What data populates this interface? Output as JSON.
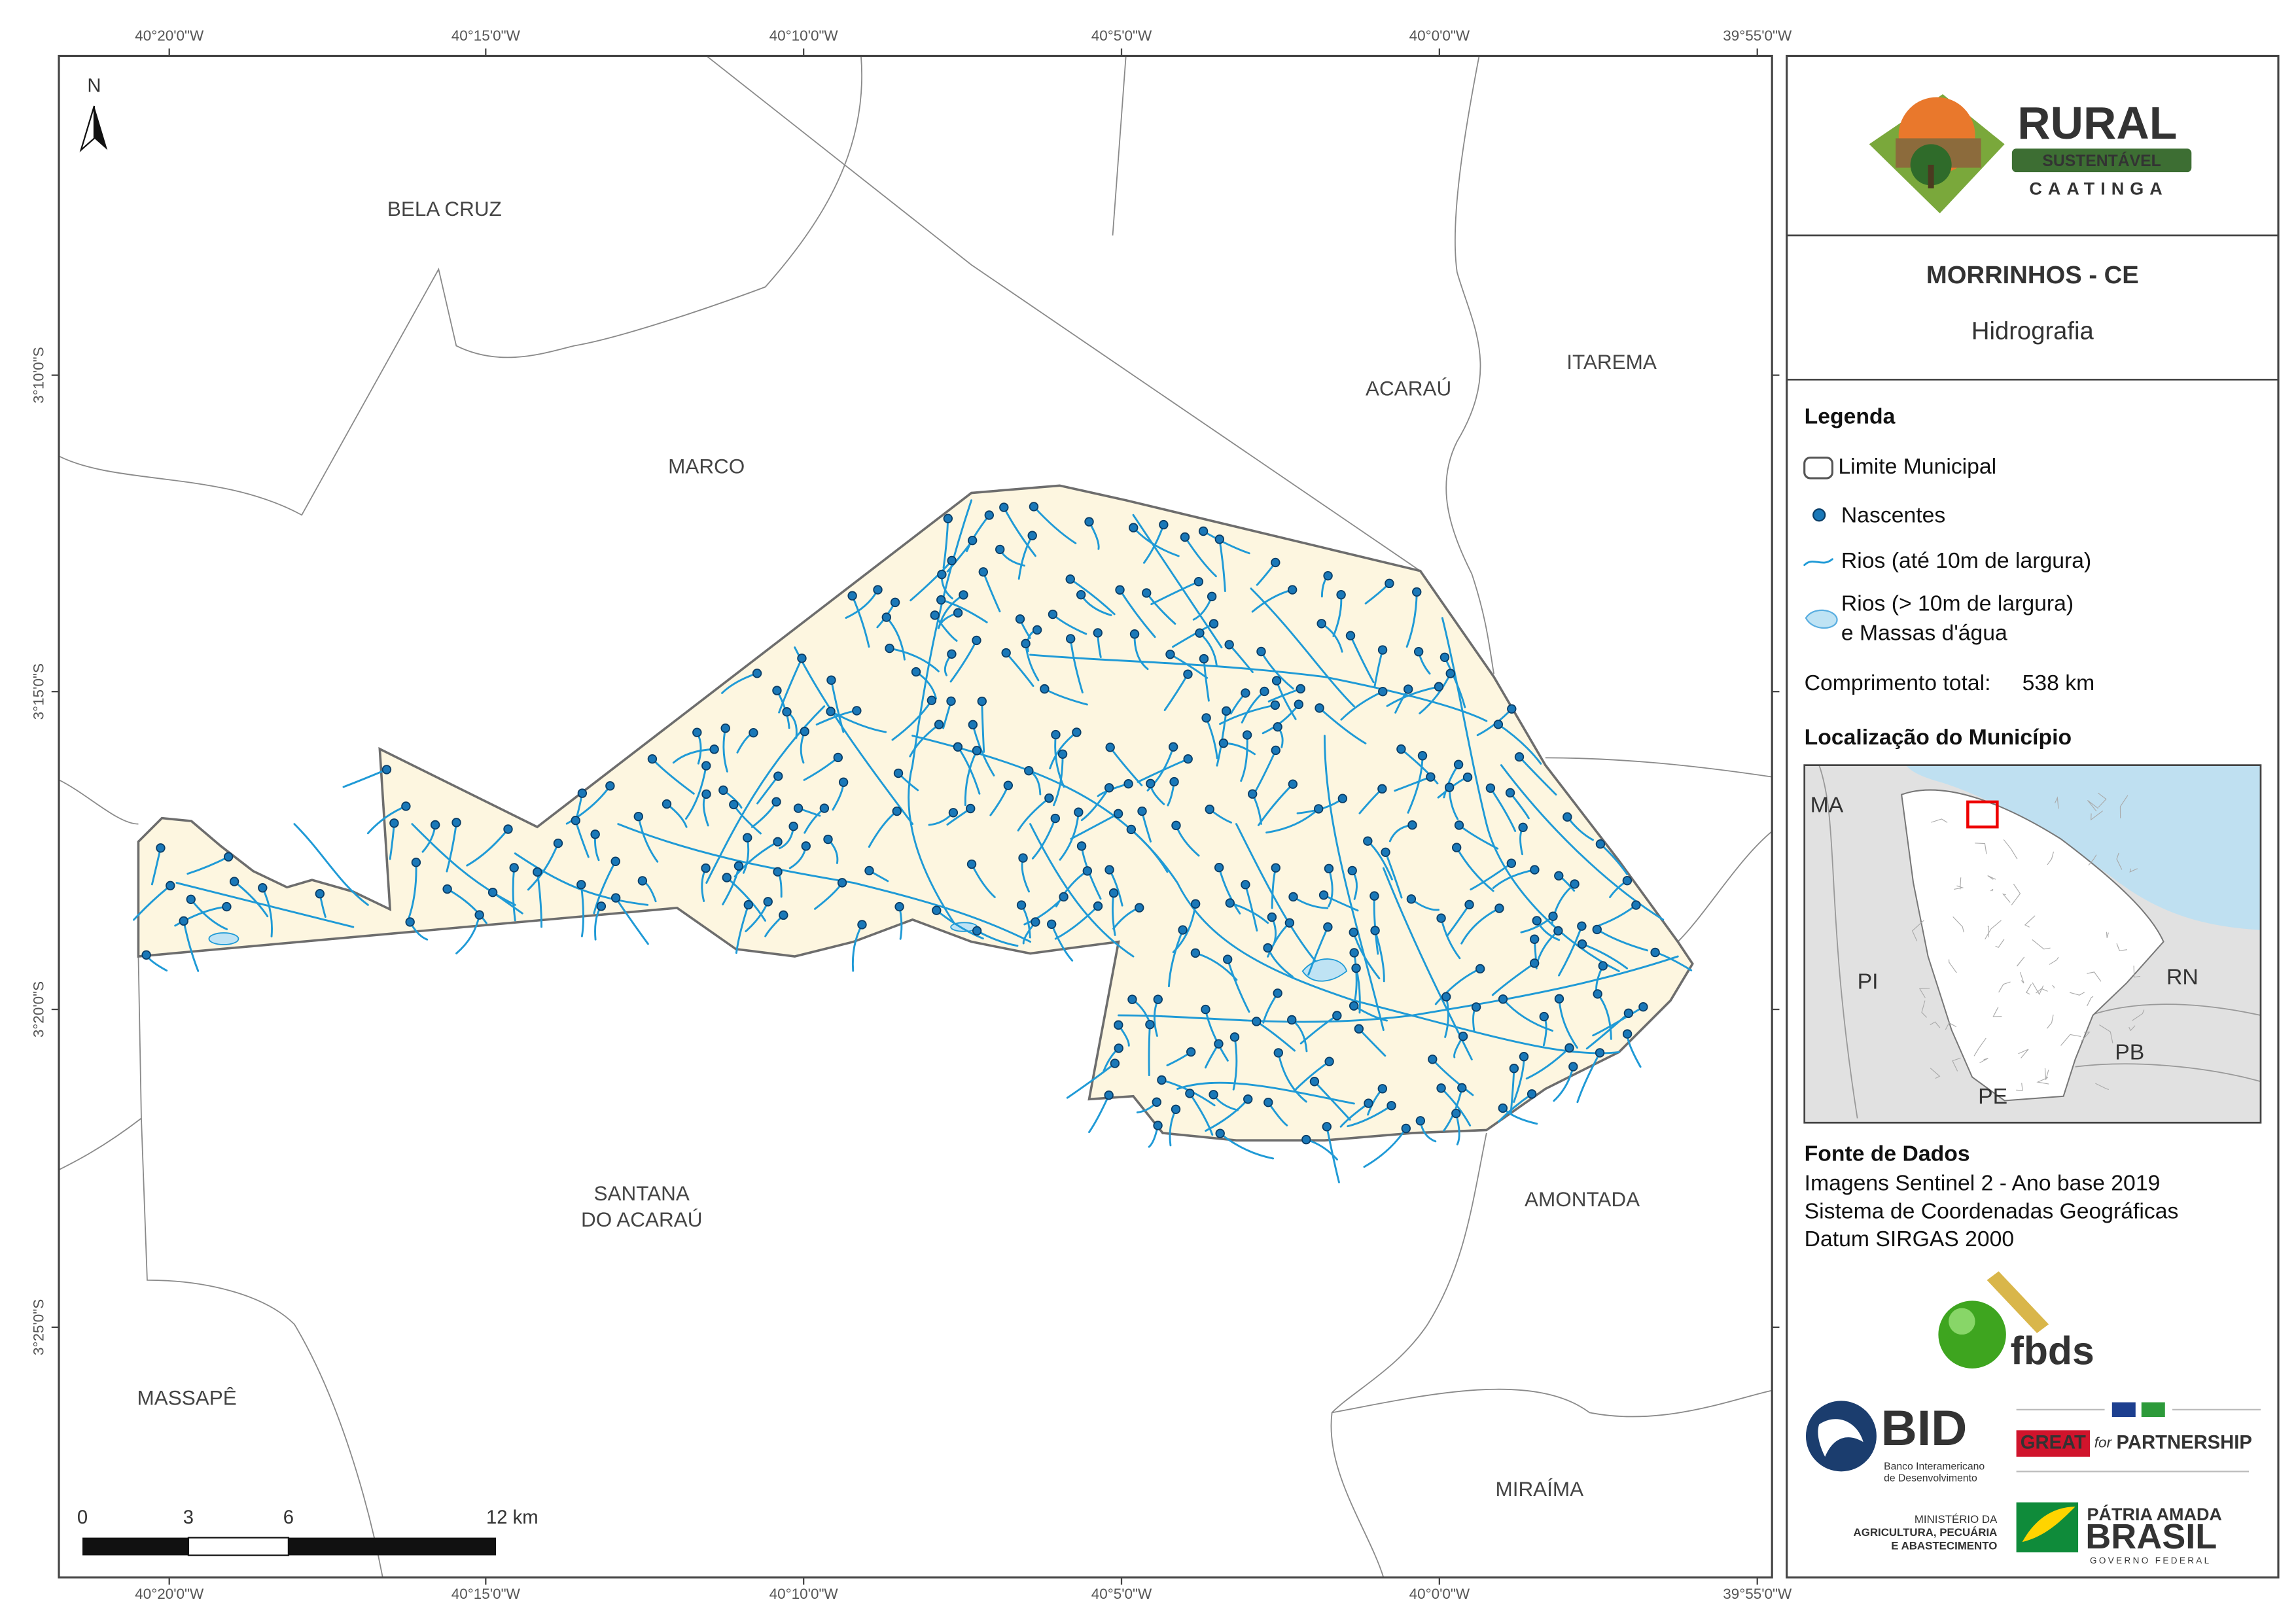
{
  "map": {
    "lon_ticks": [
      "40°20'0\"W",
      "40°15'0\"W",
      "40°10'0\"W",
      "40°5'0\"W",
      "40°0'0\"W",
      "39°55'0\"W"
    ],
    "lat_ticks": [
      "3°10'0\"S",
      "3°15'0\"S",
      "3°20'0\"S",
      "3°25'0\"S"
    ],
    "north": "N",
    "places": [
      [
        "BELA CRUZ"
      ],
      [
        "MARCO"
      ],
      [
        "ACARAÚ"
      ],
      [
        "ITAREMA"
      ],
      [
        "SANTANA",
        "DO ACARAÚ"
      ],
      [
        "MASSAPÊ"
      ],
      [
        "AMONTADA"
      ],
      [
        "MIRAÍMA"
      ]
    ],
    "scale_labels": [
      "0",
      "3",
      "6",
      "12 km"
    ]
  },
  "panel": {
    "logo": {
      "title": "RURAL",
      "subtitle": "SUSTENTÁVEL",
      "tagline": "CAATINGA"
    },
    "municipality": "MORRINHOS - CE",
    "theme": "Hidrografia",
    "legend": {
      "title": "Legenda",
      "items": [
        [
          "Limite Municipal"
        ],
        [
          "Nascentes"
        ],
        [
          "Rios (até 10m de largura)"
        ],
        [
          "Rios (> 10m de largura)",
          "e Massas d'água"
        ]
      ],
      "total_label": "Comprimento total:",
      "total_value": "538 km"
    },
    "location": {
      "title": "Localização do Município",
      "labels": [
        "MA",
        "PI",
        "RN",
        "PB",
        "PE"
      ]
    },
    "sources": {
      "title": "Fonte de Dados",
      "lines": [
        "Imagens Sentinel 2 - Ano base 2019",
        "Sistema de Coordenadas Geográficas",
        "Datum SIRGAS 2000"
      ]
    },
    "partners": {
      "fbds": "fbds",
      "bid": "BID",
      "bid_name": [
        "Banco Interamericano",
        "de Desenvolvimento"
      ],
      "great": "GREAT",
      "great_for": "for",
      "great_partnership": "PARTNERSHIP",
      "ministry": [
        "MINISTÉRIO DA",
        "AGRICULTURA, PECUÁRIA",
        "E ABASTECIMENTO"
      ],
      "brasil_top": "PÁTRIA AMADA",
      "brasil": "BRASIL",
      "brasil_sub": "GOVERNO FEDERAL"
    }
  }
}
